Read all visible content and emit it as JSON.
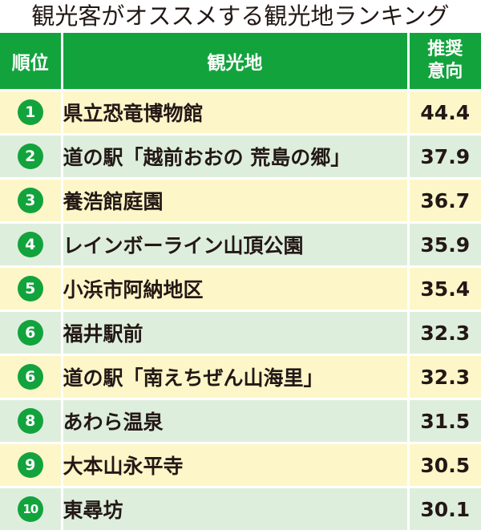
{
  "chart_data": {
    "type": "table",
    "title": "観光客がオススメする観光地ランキング",
    "columns": [
      "順位",
      "観光地",
      "推奨意向"
    ],
    "value_header_lines": [
      "推奨",
      "意向"
    ],
    "rows": [
      {
        "rank": "1",
        "name": "県立恐竜博物館",
        "value": "44.4"
      },
      {
        "rank": "2",
        "name": "道の駅「越前おおの 荒島の郷」",
        "value": "37.9"
      },
      {
        "rank": "3",
        "name": "養浩館庭園",
        "value": "36.7"
      },
      {
        "rank": "4",
        "name": "レインボーライン山頂公園",
        "value": "35.9"
      },
      {
        "rank": "5",
        "name": "小浜市阿納地区",
        "value": "35.4"
      },
      {
        "rank": "6",
        "name": "福井駅前",
        "value": "32.3"
      },
      {
        "rank": "6",
        "name": "道の駅「南えちぜん山海里」",
        "value": "32.3"
      },
      {
        "rank": "8",
        "name": "あわら温泉",
        "value": "31.5"
      },
      {
        "rank": "9",
        "name": "大本山永平寺",
        "value": "30.5"
      },
      {
        "rank": "10",
        "name": "東尋坊",
        "value": "30.1"
      }
    ]
  },
  "colors": {
    "header_green": "#12a33d",
    "row_yellow": "#fdf6c8",
    "row_green": "#deeedd",
    "text": "#231815"
  }
}
